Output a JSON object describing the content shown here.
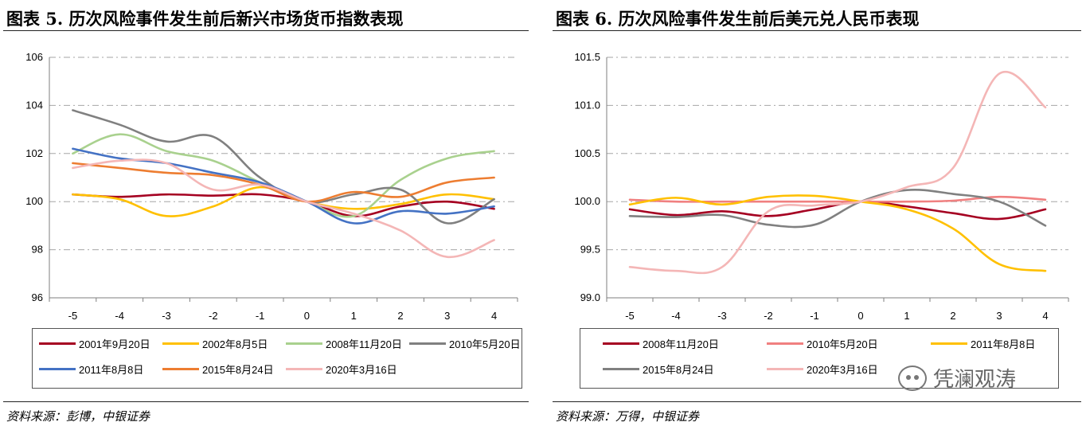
{
  "left": {
    "title": "图表 5. 历次风险事件发生前后新兴市场货币指数表现",
    "source": "资料来源：彭博，中银证券"
  },
  "right": {
    "title": "图表 6. 历次风险事件发生前后美元兑人民币表现",
    "source": "资料来源：万得，中银证券"
  },
  "watermark": {
    "text": "凭澜观涛",
    "icon": "wechat-icon"
  },
  "chart_data": [
    {
      "type": "line",
      "title": "图表 5. 历次风险事件发生前后新兴市场货币指数表现",
      "x": [
        -5,
        -4,
        -3,
        -2,
        -1,
        0,
        1,
        2,
        3,
        4
      ],
      "ylim": [
        96,
        106
      ],
      "yticks": [
        96,
        98,
        100,
        102,
        104,
        106
      ],
      "ytick_decimals": 0,
      "grid": true,
      "legend_position": "bottom",
      "legend_columns": 4,
      "series": [
        {
          "name": "2001年9月20日",
          "color": "#A50021",
          "values": [
            100.3,
            100.2,
            100.3,
            100.25,
            100.3,
            100.0,
            99.4,
            99.8,
            100.0,
            99.7
          ]
        },
        {
          "name": "2002年8月5日",
          "color": "#FFC000",
          "values": [
            100.3,
            100.1,
            99.4,
            99.8,
            100.6,
            100.0,
            99.7,
            99.9,
            100.3,
            100.1
          ]
        },
        {
          "name": "2008年11月20日",
          "color": "#A9D18E",
          "values": [
            102.0,
            102.8,
            102.1,
            101.7,
            100.8,
            100.0,
            99.4,
            100.9,
            101.8,
            102.1
          ]
        },
        {
          "name": "2010年5月20日",
          "color": "#808080",
          "values": [
            103.8,
            103.2,
            102.5,
            102.7,
            101.0,
            100.0,
            100.3,
            100.5,
            99.1,
            100.1
          ]
        },
        {
          "name": "2011年8月8日",
          "color": "#4472C4",
          "values": [
            102.2,
            101.8,
            101.6,
            101.2,
            100.8,
            100.0,
            99.1,
            99.6,
            99.5,
            99.8
          ]
        },
        {
          "name": "2015年8月24日",
          "color": "#ED7D31",
          "values": [
            101.6,
            101.4,
            101.2,
            101.1,
            100.7,
            100.0,
            100.4,
            100.2,
            100.8,
            101.0
          ]
        },
        {
          "name": "2020年3月16日",
          "color": "#F4B6B6",
          "values": [
            101.4,
            101.7,
            101.6,
            100.5,
            100.7,
            100.0,
            99.5,
            98.8,
            97.7,
            98.4
          ]
        }
      ]
    },
    {
      "type": "line",
      "title": "图表 6. 历次风险事件发生前后美元兑人民币表现",
      "x": [
        -5,
        -4,
        -3,
        -2,
        -1,
        0,
        1,
        2,
        3,
        4
      ],
      "ylim": [
        99.0,
        101.5
      ],
      "yticks": [
        99.0,
        99.5,
        100.0,
        100.5,
        101.0,
        101.5
      ],
      "ytick_decimals": 1,
      "grid": true,
      "legend_position": "bottom",
      "legend_columns": 3,
      "series": [
        {
          "name": "2008年11月20日",
          "color": "#A50021",
          "values": [
            99.92,
            99.86,
            99.9,
            99.85,
            99.92,
            100.0,
            99.95,
            99.88,
            99.82,
            99.92
          ]
        },
        {
          "name": "2010年5月20日",
          "color": "#F08080",
          "values": [
            100.02,
            100.0,
            100.0,
            100.0,
            100.0,
            100.0,
            100.0,
            100.01,
            100.05,
            100.02
          ]
        },
        {
          "name": "2011年8月8日",
          "color": "#FFC000",
          "values": [
            99.97,
            100.04,
            99.97,
            100.05,
            100.06,
            100.0,
            99.92,
            99.72,
            99.35,
            99.28
          ]
        },
        {
          "name": "2015年8月24日",
          "color": "#808080",
          "values": [
            99.85,
            99.84,
            99.86,
            99.76,
            99.76,
            100.0,
            100.12,
            100.08,
            100.0,
            99.75
          ]
        },
        {
          "name": "2020年3月16日",
          "color": "#F4B6B6",
          "values": [
            99.32,
            99.28,
            99.32,
            99.9,
            99.96,
            100.0,
            100.15,
            100.35,
            101.33,
            100.98
          ]
        }
      ]
    }
  ]
}
